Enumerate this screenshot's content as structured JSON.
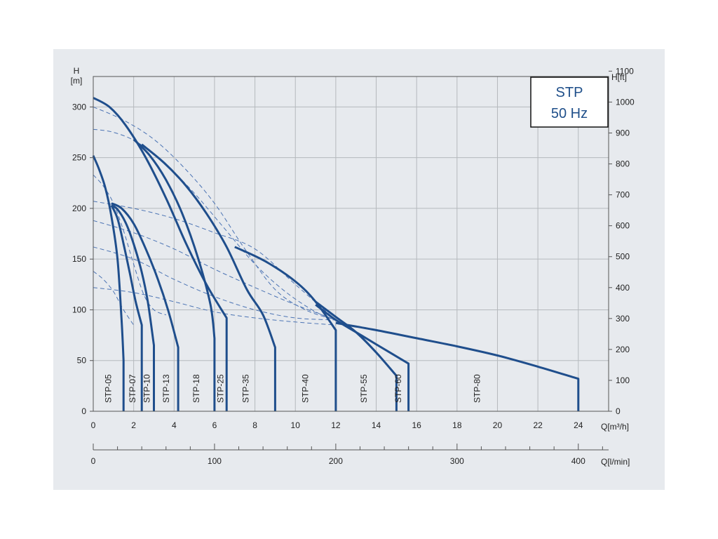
{
  "chart_data": {
    "type": "line",
    "badge": {
      "line1": "STP",
      "line2": "50 Hz"
    },
    "colors": {
      "curve": "#1f4e8c",
      "dashed": "#4c74b4",
      "grid": "#b5b9bd",
      "frame": "#555555"
    },
    "left_axis": {
      "label_line1": "H",
      "label_line2": "[m]",
      "range": [
        0,
        330
      ],
      "ticks": [
        0,
        50,
        100,
        150,
        200,
        250,
        300
      ]
    },
    "right_axis": {
      "label": "H[ft]",
      "ticks": [
        0,
        100,
        200,
        300,
        400,
        500,
        600,
        700,
        800,
        900,
        1000,
        1100
      ],
      "ft_per_m": 3.28084
    },
    "x_axis": {
      "label": "Q[m³/h]",
      "range": [
        0,
        25.5
      ],
      "ticks": [
        0,
        2,
        4,
        6,
        8,
        10,
        12,
        14,
        16,
        18,
        20,
        22,
        24
      ]
    },
    "x2_axis": {
      "label": "Q[l/min]",
      "major_ticks": [
        0,
        100,
        200,
        300,
        400
      ],
      "minor_step": 20
    },
    "grid": true,
    "series": [
      {
        "name": "STP-05",
        "label_x": 0.75,
        "end_x": 1.5,
        "points": [
          [
            0,
            252
          ],
          [
            0.3,
            238
          ],
          [
            0.6,
            220
          ],
          [
            0.9,
            192
          ],
          [
            1.2,
            150
          ],
          [
            1.4,
            90
          ],
          [
            1.5,
            50
          ],
          [
            1.5,
            0
          ]
        ]
      },
      {
        "name": "STP-07",
        "label_x": 1.95,
        "end_x": 2.4,
        "points": [
          [
            0.9,
            203
          ],
          [
            1.2,
            190
          ],
          [
            1.5,
            165
          ],
          [
            1.8,
            137
          ],
          [
            2.1,
            108
          ],
          [
            2.4,
            85
          ],
          [
            2.4,
            0
          ]
        ]
      },
      {
        "name": "STP-10",
        "label_x": 2.65,
        "end_x": 3.0,
        "points": [
          [
            0.9,
            203
          ],
          [
            1.2,
            199
          ],
          [
            1.6,
            186
          ],
          [
            2.0,
            165
          ],
          [
            2.4,
            137
          ],
          [
            2.7,
            108
          ],
          [
            3.0,
            65
          ],
          [
            3.0,
            0
          ]
        ]
      },
      {
        "name": "STP-13",
        "label_x": 3.6,
        "end_x": 4.2,
        "points": [
          [
            0.9,
            205
          ],
          [
            1.4,
            200
          ],
          [
            2.0,
            185
          ],
          [
            2.6,
            160
          ],
          [
            3.2,
            130
          ],
          [
            3.7,
            100
          ],
          [
            4.2,
            63
          ],
          [
            4.2,
            0
          ]
        ]
      },
      {
        "name": "STP-18",
        "label_x": 5.1,
        "end_x": 6.0,
        "points": [
          [
            2.0,
            268
          ],
          [
            2.8,
            252
          ],
          [
            3.6,
            228
          ],
          [
            4.4,
            195
          ],
          [
            5.2,
            150
          ],
          [
            5.8,
            105
          ],
          [
            6.0,
            72
          ],
          [
            6.0,
            0
          ]
        ]
      },
      {
        "name": "STP-25",
        "label_x": 6.3,
        "end_x": 6.6,
        "points": [
          [
            0,
            309
          ],
          [
            0.8,
            300
          ],
          [
            1.6,
            282
          ],
          [
            2.6,
            250
          ],
          [
            3.6,
            210
          ],
          [
            4.6,
            165
          ],
          [
            5.6,
            125
          ],
          [
            6.6,
            92
          ],
          [
            6.6,
            0
          ]
        ]
      },
      {
        "name": "STP-35",
        "label_x": 7.55,
        "end_x": 9.0,
        "points": [
          [
            2.4,
            263
          ],
          [
            3.5,
            245
          ],
          [
            4.6,
            222
          ],
          [
            5.6,
            195
          ],
          [
            6.6,
            162
          ],
          [
            7.6,
            120
          ],
          [
            8.4,
            95
          ],
          [
            9.0,
            63
          ],
          [
            9.0,
            0
          ]
        ]
      },
      {
        "name": "STP-40",
        "label_x": 10.5,
        "end_x": 12.0,
        "points": [
          [
            7.0,
            162
          ],
          [
            8.5,
            148
          ],
          [
            10.0,
            128
          ],
          [
            11.0,
            108
          ],
          [
            12.0,
            80
          ],
          [
            12.0,
            0
          ]
        ]
      },
      {
        "name": "STP-55",
        "label_x": 13.4,
        "end_x": 15.0,
        "points": [
          [
            11.0,
            108
          ],
          [
            12.0,
            93
          ],
          [
            13.0,
            78
          ],
          [
            14.0,
            58
          ],
          [
            15.0,
            35
          ],
          [
            15.0,
            0
          ]
        ]
      },
      {
        "name": "STP-60",
        "label_x": 15.1,
        "end_x": 15.6,
        "points": [
          [
            11.0,
            105
          ],
          [
            12.0,
            90
          ],
          [
            13.0,
            78
          ],
          [
            14.0,
            66
          ],
          [
            15.6,
            47
          ],
          [
            15.6,
            0
          ]
        ]
      },
      {
        "name": "STP-80",
        "label_x": 19.0,
        "end_x": 24.0,
        "points": [
          [
            12.0,
            87
          ],
          [
            14.0,
            80
          ],
          [
            16.0,
            72
          ],
          [
            18.0,
            64
          ],
          [
            20.0,
            55
          ],
          [
            22.0,
            44
          ],
          [
            24.0,
            32
          ],
          [
            24.0,
            0
          ]
        ]
      }
    ],
    "dashed_curves": [
      {
        "points": [
          [
            0,
            300
          ],
          [
            1.5,
            287
          ],
          [
            3.0,
            268
          ],
          [
            4.5,
            240
          ],
          [
            6.0,
            205
          ],
          [
            7.5,
            160
          ],
          [
            9.0,
            120
          ],
          [
            10.5,
            100
          ],
          [
            12.0,
            90
          ]
        ]
      },
      {
        "points": [
          [
            0,
            278
          ],
          [
            1.0,
            275
          ],
          [
            2.2,
            265
          ],
          [
            3.5,
            245
          ],
          [
            5.0,
            215
          ],
          [
            6.5,
            180
          ],
          [
            8.0,
            145
          ],
          [
            9.5,
            118
          ],
          [
            11.0,
            98
          ],
          [
            12.0,
            90
          ]
        ]
      },
      {
        "points": [
          [
            0,
            233
          ],
          [
            0.5,
            222
          ],
          [
            1.0,
            205
          ],
          [
            1.5,
            178
          ],
          [
            2.0,
            145
          ],
          [
            2.5,
            115
          ],
          [
            3.0,
            100
          ],
          [
            3.6,
            95
          ]
        ]
      },
      {
        "points": [
          [
            0,
            207
          ],
          [
            2.0,
            200
          ],
          [
            4.0,
            190
          ],
          [
            6.0,
            176
          ],
          [
            8.0,
            160
          ],
          [
            10.0,
            125
          ],
          [
            12.0,
            90
          ]
        ]
      },
      {
        "points": [
          [
            0,
            188
          ],
          [
            2.0,
            176
          ],
          [
            4.0,
            160
          ],
          [
            6.0,
            140
          ],
          [
            8.0,
            122
          ],
          [
            10.0,
            105
          ],
          [
            12.0,
            90
          ]
        ]
      },
      {
        "points": [
          [
            0,
            162
          ],
          [
            2.0,
            150
          ],
          [
            4.0,
            130
          ],
          [
            6.0,
            113
          ],
          [
            8.0,
            100
          ],
          [
            10.0,
            92
          ],
          [
            12.0,
            90
          ]
        ]
      },
      {
        "points": [
          [
            0,
            138
          ],
          [
            0.5,
            130
          ],
          [
            1.0,
            118
          ],
          [
            1.5,
            100
          ],
          [
            2.0,
            85
          ]
        ]
      },
      {
        "points": [
          [
            0,
            122
          ],
          [
            2.0,
            117
          ],
          [
            4.0,
            108
          ],
          [
            6.0,
            98
          ],
          [
            8.0,
            92
          ],
          [
            10.0,
            88
          ],
          [
            12.0,
            85
          ]
        ]
      }
    ]
  }
}
